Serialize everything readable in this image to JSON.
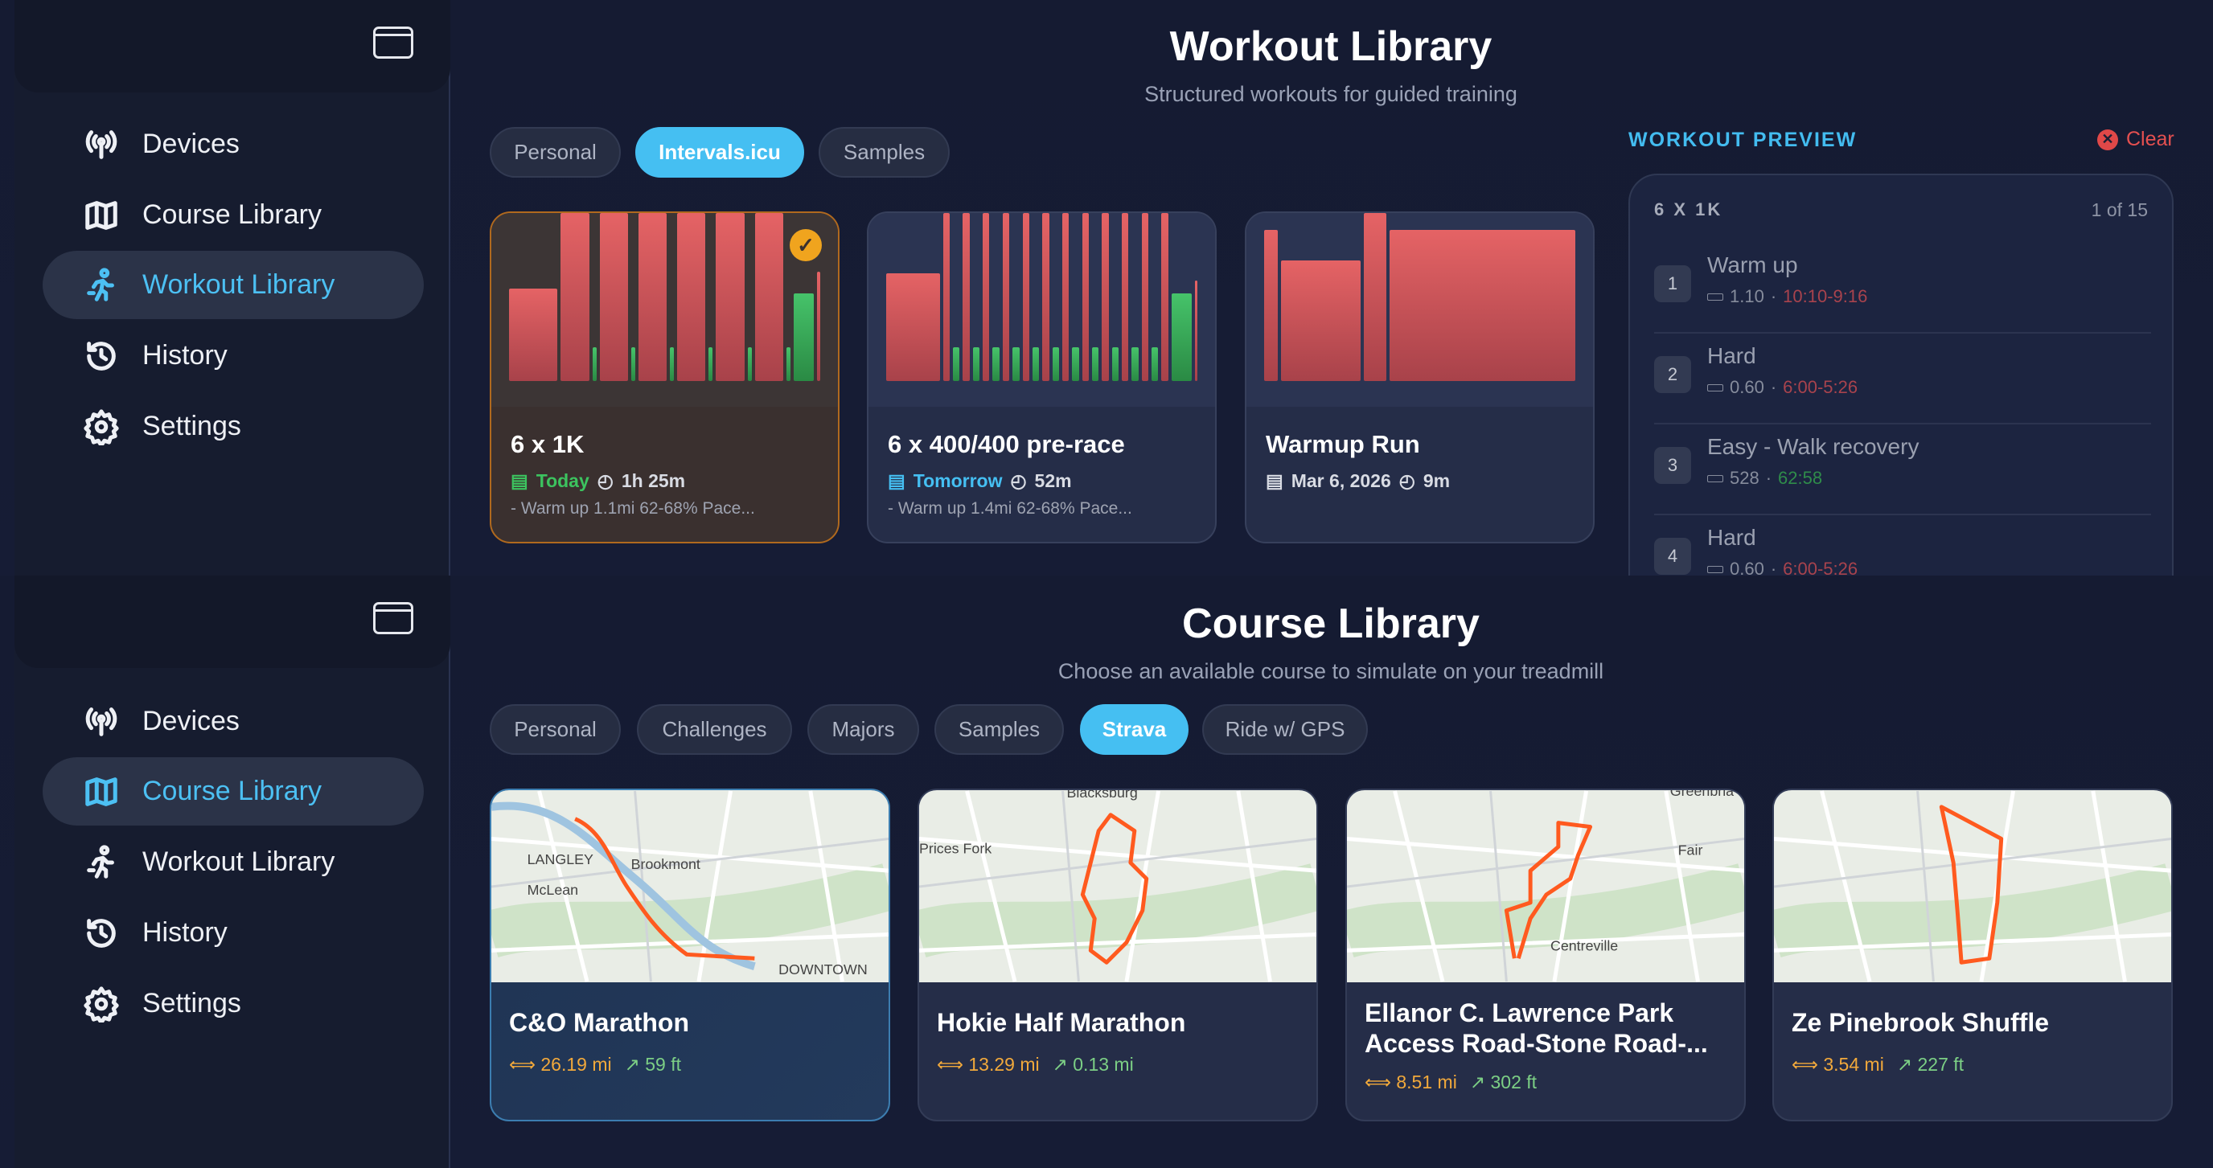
{
  "sidebar": {
    "items": [
      {
        "label": "Devices",
        "icon": "antenna-icon"
      },
      {
        "label": "Course Library",
        "icon": "map-icon"
      },
      {
        "label": "Workout Library",
        "icon": "runner-icon"
      },
      {
        "label": "History",
        "icon": "history-icon"
      },
      {
        "label": "Settings",
        "icon": "gear-icon"
      }
    ]
  },
  "workout_screen": {
    "title": "Workout Library",
    "subtitle": "Structured workouts for guided training",
    "tabs": [
      "Personal",
      "Intervals.icu",
      "Samples"
    ],
    "selected_tab": "Intervals.icu",
    "cards": [
      {
        "title": "6 x 1K",
        "date": "Today",
        "duration": "1h 25m",
        "desc": "- Warm up 1.1mi 62-68% Pace...",
        "selected": true,
        "segments": [
          {
            "d": 6,
            "i": 0.55,
            "z": "r"
          },
          {
            "d": 3.5,
            "i": 1,
            "z": "r"
          },
          {
            "d": 0.5,
            "i": 0.2,
            "z": "g"
          },
          {
            "d": 3.5,
            "i": 1,
            "z": "r"
          },
          {
            "d": 0.5,
            "i": 0.2,
            "z": "g"
          },
          {
            "d": 3.5,
            "i": 1,
            "z": "r"
          },
          {
            "d": 0.5,
            "i": 0.2,
            "z": "g"
          },
          {
            "d": 3.5,
            "i": 1,
            "z": "r"
          },
          {
            "d": 0.5,
            "i": 0.2,
            "z": "g"
          },
          {
            "d": 3.5,
            "i": 1,
            "z": "r"
          },
          {
            "d": 0.5,
            "i": 0.2,
            "z": "g"
          },
          {
            "d": 3.5,
            "i": 1,
            "z": "r"
          },
          {
            "d": 0.5,
            "i": 0.2,
            "z": "g"
          },
          {
            "d": 2.5,
            "i": 0.52,
            "z": "g"
          },
          {
            "d": 0.4,
            "i": 0.65,
            "z": "r"
          }
        ]
      },
      {
        "title": "6 x 400/400 pre-race",
        "date": "Tomorrow",
        "duration": "52m",
        "desc": "- Warm up 1.4mi 62-68% Pace...",
        "segments": [
          {
            "d": 8,
            "i": 0.64,
            "z": "r"
          },
          {
            "d": 1,
            "i": 1,
            "z": "r"
          },
          {
            "d": 1,
            "i": 0.2,
            "z": "g"
          },
          {
            "d": 1,
            "i": 1,
            "z": "r"
          },
          {
            "d": 1,
            "i": 0.2,
            "z": "g"
          },
          {
            "d": 1,
            "i": 1,
            "z": "r"
          },
          {
            "d": 1,
            "i": 0.2,
            "z": "g"
          },
          {
            "d": 1,
            "i": 1,
            "z": "r"
          },
          {
            "d": 1,
            "i": 0.2,
            "z": "g"
          },
          {
            "d": 1,
            "i": 1,
            "z": "r"
          },
          {
            "d": 1,
            "i": 0.2,
            "z": "g"
          },
          {
            "d": 1,
            "i": 1,
            "z": "r"
          },
          {
            "d": 1,
            "i": 0.2,
            "z": "g"
          },
          {
            "d": 1,
            "i": 1,
            "z": "r"
          },
          {
            "d": 1,
            "i": 0.2,
            "z": "g"
          },
          {
            "d": 1,
            "i": 1,
            "z": "r"
          },
          {
            "d": 1,
            "i": 0.2,
            "z": "g"
          },
          {
            "d": 1,
            "i": 1,
            "z": "r"
          },
          {
            "d": 1,
            "i": 0.2,
            "z": "g"
          },
          {
            "d": 1,
            "i": 1,
            "z": "r"
          },
          {
            "d": 1,
            "i": 0.2,
            "z": "g"
          },
          {
            "d": 1,
            "i": 1,
            "z": "r"
          },
          {
            "d": 1,
            "i": 0.2,
            "z": "g"
          },
          {
            "d": 1,
            "i": 1,
            "z": "r"
          },
          {
            "d": 3,
            "i": 0.52,
            "z": "g"
          },
          {
            "d": 0.4,
            "i": 0.6,
            "z": "r"
          }
        ]
      },
      {
        "title": "Warmup Run",
        "date": "Mar 6, 2026",
        "duration": "9m",
        "segments": [
          {
            "d": 1,
            "i": 0.9,
            "z": "r"
          },
          {
            "d": 6,
            "i": 0.72,
            "z": "r"
          },
          {
            "d": 1.7,
            "i": 1,
            "z": "r"
          },
          {
            "d": 14,
            "i": 0.9,
            "z": "r"
          }
        ]
      }
    ],
    "preview": {
      "heading": "WORKOUT PREVIEW",
      "clear_label": "Clear",
      "name": "6 X 1K",
      "count": "1 of 15",
      "steps": [
        {
          "n": "1",
          "name": "Warm up",
          "dist": "1.10",
          "pace": "10:10-9:16",
          "pace_color": "#a8434d"
        },
        {
          "n": "2",
          "name": "Hard",
          "dist": "0.60",
          "pace": "6:00-5:26",
          "pace_color": "#a8434d"
        },
        {
          "n": "3",
          "name": "Easy - Walk recovery",
          "dist": "528",
          "pace": "62:58",
          "pace_color": "#2f8c4a"
        },
        {
          "n": "4",
          "name": "Hard",
          "dist": "0.60",
          "pace": "6:00-5:26",
          "pace_color": "#a8434d"
        }
      ]
    }
  },
  "course_screen": {
    "title": "Course Library",
    "subtitle": "Choose an available course to simulate on your treadmill",
    "tabs": [
      "Personal",
      "Challenges",
      "Majors",
      "Samples",
      "Strava",
      "Ride w/ GPS"
    ],
    "selected_tab": "Strava",
    "cards": [
      {
        "title": "C&O Marathon",
        "distance": "26.19 mi",
        "elevation": "59 ft",
        "selected": true,
        "map_labels": [
          "LANGLEY",
          "Brookmont",
          "McLean",
          "DOWNTOWN"
        ]
      },
      {
        "title": "Hokie Half Marathon",
        "distance": "13.29 mi",
        "elevation": "0.13 mi",
        "map_labels": [
          "Blacksburg",
          "Prices Fork"
        ]
      },
      {
        "title": "Ellanor C. Lawrence Park Access Road-Stone Road-...",
        "distance": "8.51 mi",
        "elevation": "302 ft",
        "map_labels": [
          "Centreville",
          "Fair",
          "Greenbria"
        ]
      },
      {
        "title": "Ze Pinebrook Shuffle",
        "distance": "3.54 mi",
        "elevation": "227 ft",
        "map_labels": []
      }
    ]
  },
  "colors": {
    "accent": "#45bff2",
    "route": "#ff5a1f",
    "distance": "#f2a93b",
    "elevation": "#7ccf85",
    "selected_border": "#b0691e"
  }
}
